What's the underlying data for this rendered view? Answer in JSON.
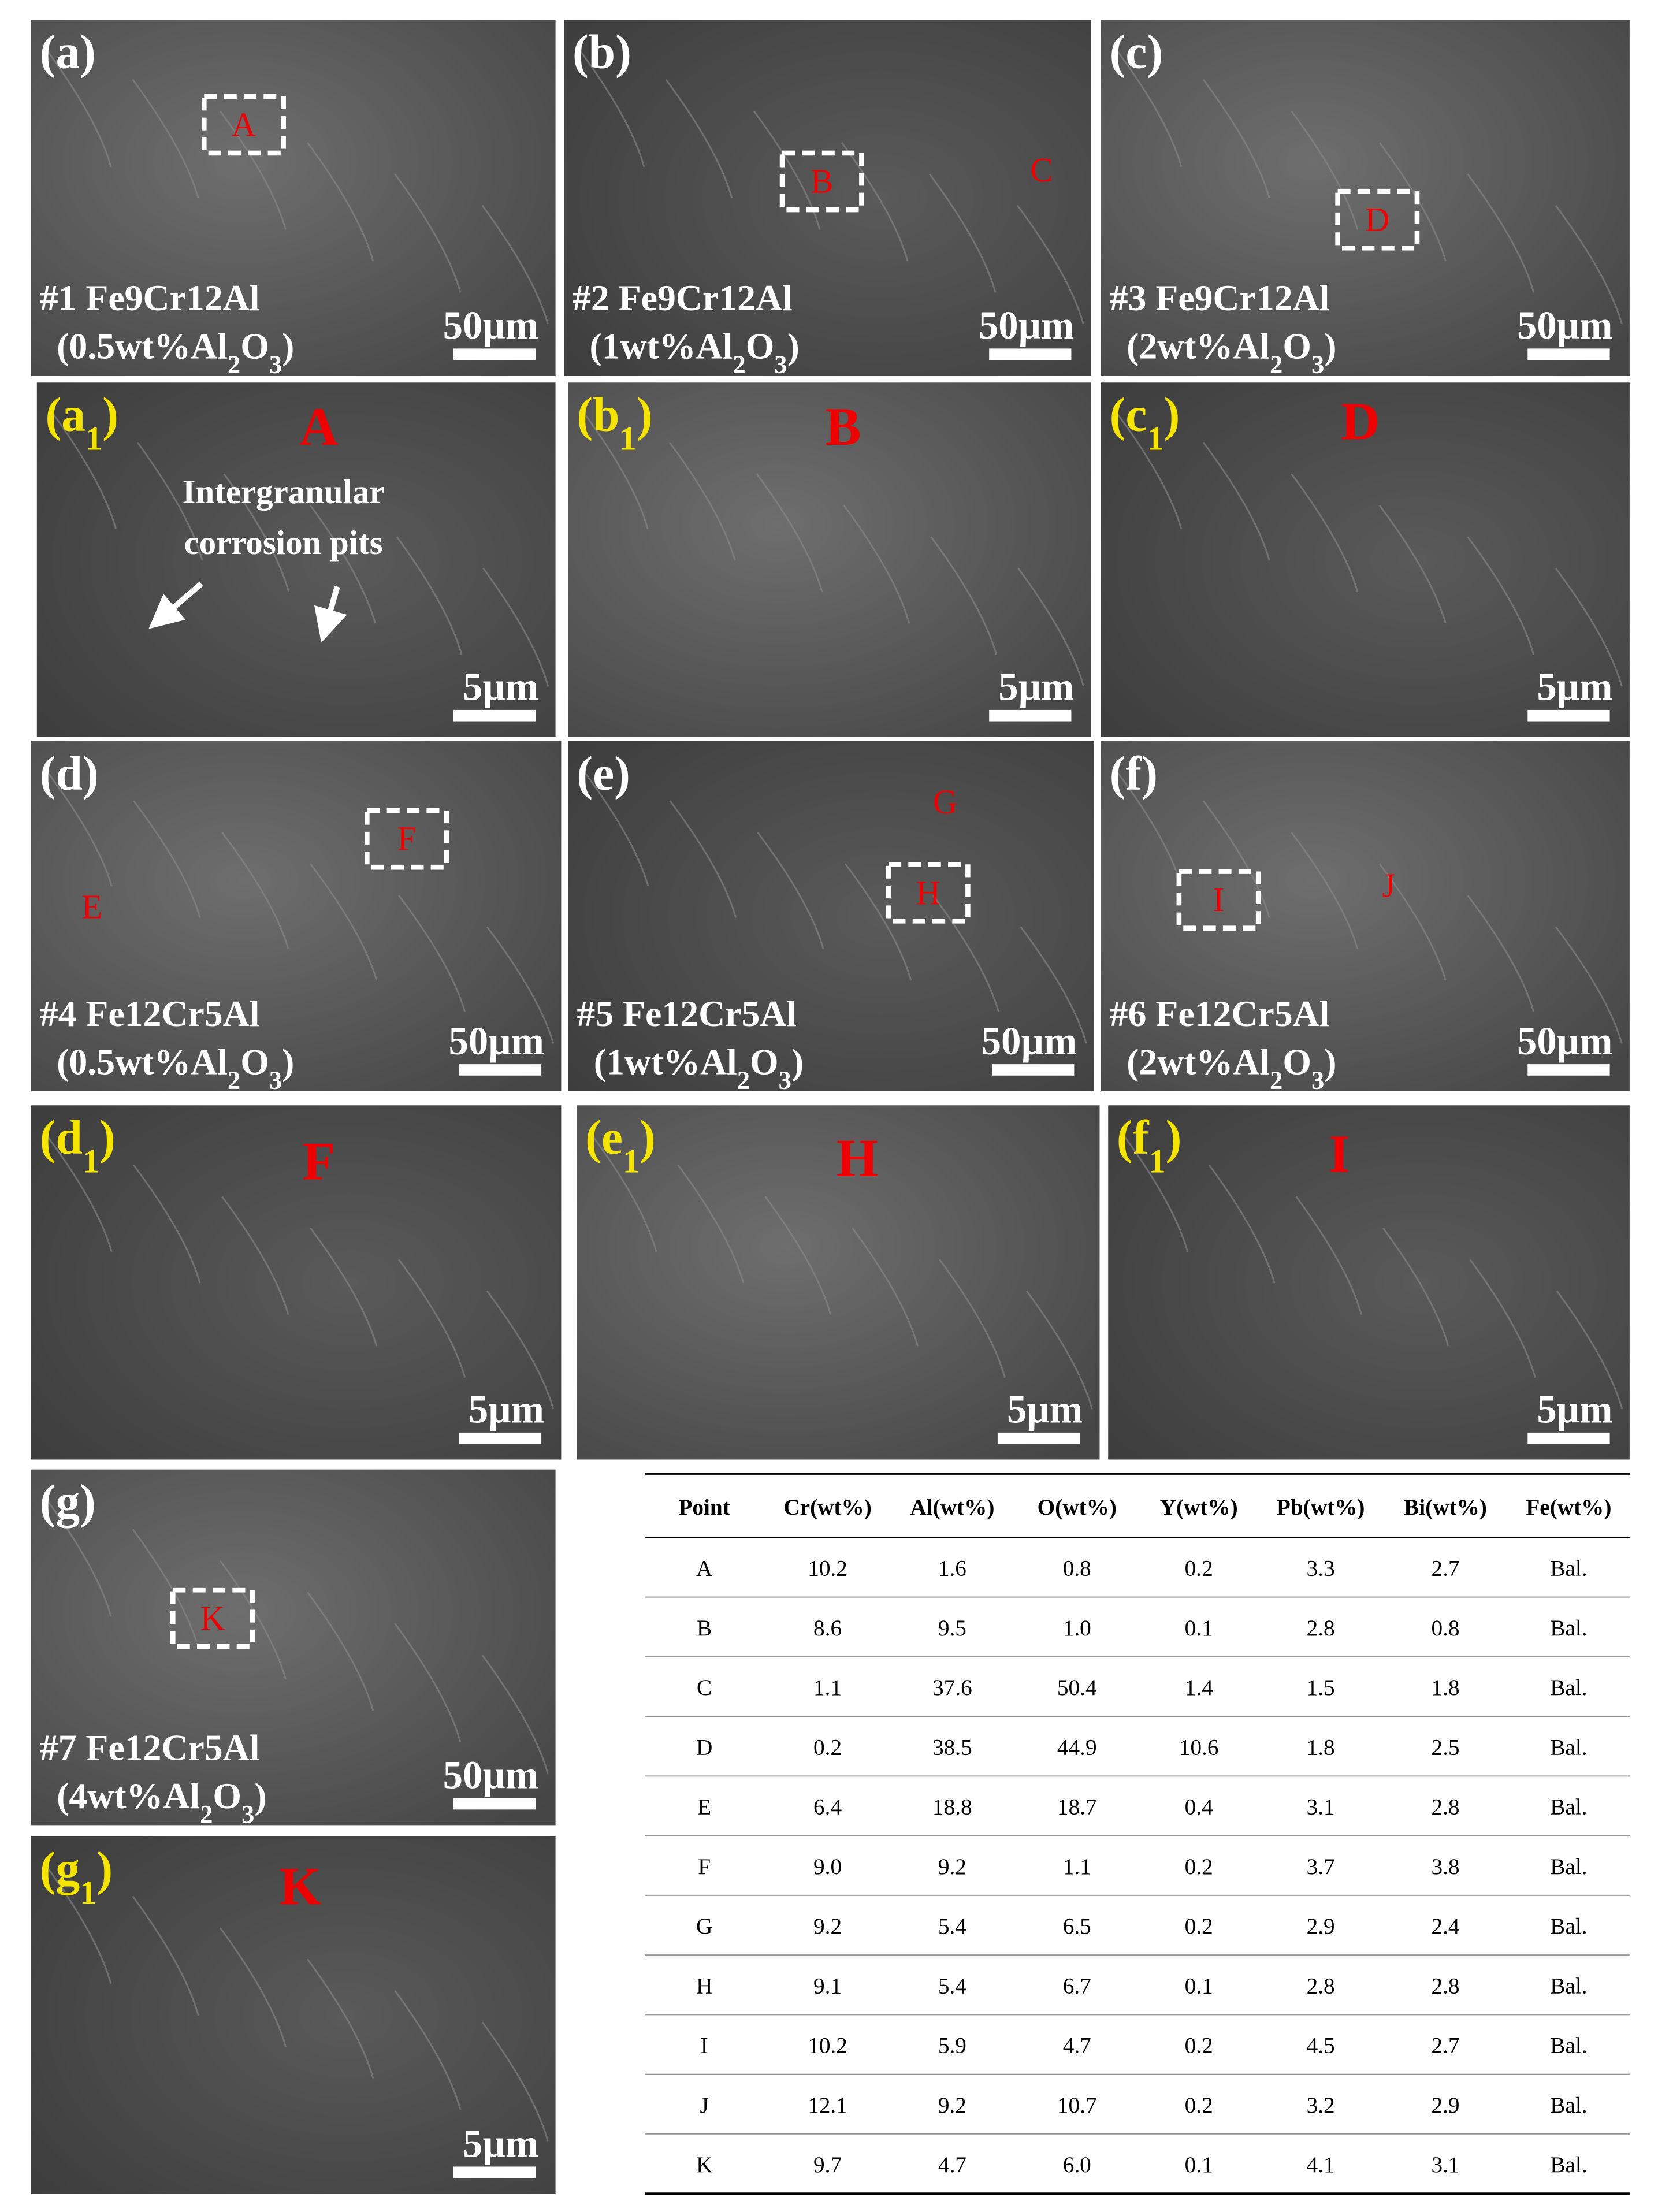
{
  "panels": [
    {
      "label": [
        "(a)"
      ],
      "caption": "#1 Fe9Cr12Al",
      "composition": [
        "(0.5wt%Al",
        "2",
        "O",
        "3",
        ")"
      ],
      "scale": "50µm",
      "points": [
        "A"
      ]
    },
    {
      "label": [
        "(b)"
      ],
      "caption": "#2 Fe9Cr12Al",
      "composition": [
        "(1wt%Al",
        "2",
        "O",
        "3",
        ")"
      ],
      "scale": "50µm",
      "points": [
        "B",
        "C"
      ]
    },
    {
      "label": [
        "(c)"
      ],
      "caption": "#3 Fe9Cr12Al",
      "composition": [
        "(2wt%Al",
        "2",
        "O",
        "3",
        ")"
      ],
      "scale": "50µm",
      "points": [
        "D"
      ]
    },
    {
      "label": [
        "(a",
        "1",
        ")"
      ],
      "scale": "5µm",
      "points": [
        "A"
      ],
      "annotation": [
        "Intergranular",
        "corrosion pits"
      ]
    },
    {
      "label": [
        "(b",
        "1",
        ")"
      ],
      "scale": "5µm",
      "points": [
        "B"
      ]
    },
    {
      "label": [
        "(c",
        "1",
        ")"
      ],
      "scale": "5µm",
      "points": [
        "D"
      ]
    },
    {
      "label": [
        "(d)"
      ],
      "caption": "#4 Fe12Cr5Al",
      "composition": [
        "(0.5wt%Al",
        "2",
        "O",
        "3",
        ")"
      ],
      "scale": "50µm",
      "points": [
        "F",
        "E"
      ]
    },
    {
      "label": [
        "(e)"
      ],
      "caption": "#5 Fe12Cr5Al",
      "composition": [
        "(1wt%Al",
        "2",
        "O",
        "3",
        ")"
      ],
      "scale": "50µm",
      "points": [
        "G",
        "H"
      ]
    },
    {
      "label": [
        "(f)"
      ],
      "caption": "#6 Fe12Cr5Al",
      "composition": [
        "(2wt%Al",
        "2",
        "O",
        "3",
        ")"
      ],
      "scale": "50µm",
      "points": [
        "I",
        "J"
      ]
    },
    {
      "label": [
        "(d",
        "1",
        ")"
      ],
      "scale": "5µm",
      "points": [
        "F"
      ]
    },
    {
      "label": [
        "(e",
        "1",
        ")"
      ],
      "scale": "5µm",
      "points": [
        "H"
      ]
    },
    {
      "label": [
        "(f",
        "1",
        ")"
      ],
      "scale": "5µm",
      "points": [
        "I"
      ]
    },
    {
      "label": [
        "(g)"
      ],
      "caption": "#7 Fe12Cr5Al",
      "composition": [
        "(4wt%Al",
        "2",
        "O",
        "3",
        ")"
      ],
      "scale": "50µm",
      "points": [
        "K"
      ]
    },
    {
      "label": [
        "(g",
        "1",
        ")"
      ],
      "scale": "5µm",
      "points": [
        "K"
      ]
    }
  ],
  "table": {
    "header": [
      "Point",
      "Cr(wt%)",
      "Al(wt%)",
      "O(wt%)",
      "Y(wt%)",
      "Pb(wt%)",
      "Bi(wt%)",
      "Fe(wt%)"
    ],
    "rows": [
      [
        "A",
        "10.2",
        "1.6",
        "0.8",
        "0.2",
        "3.3",
        "2.7",
        "Bal."
      ],
      [
        "B",
        "8.6",
        "9.5",
        "1.0",
        "0.1",
        "2.8",
        "0.8",
        "Bal."
      ],
      [
        "C",
        "1.1",
        "37.6",
        "50.4",
        "1.4",
        "1.5",
        "1.8",
        "Bal."
      ],
      [
        "D",
        "0.2",
        "38.5",
        "44.9",
        "10.6",
        "1.8",
        "2.5",
        "Bal."
      ],
      [
        "E",
        "6.4",
        "18.8",
        "18.7",
        "0.4",
        "3.1",
        "2.8",
        "Bal."
      ],
      [
        "F",
        "9.0",
        "9.2",
        "1.1",
        "0.2",
        "3.7",
        "3.8",
        "Bal."
      ],
      [
        "G",
        "9.2",
        "5.4",
        "6.5",
        "0.2",
        "2.9",
        "2.4",
        "Bal."
      ],
      [
        "H",
        "9.1",
        "5.4",
        "6.7",
        "0.1",
        "2.8",
        "2.8",
        "Bal."
      ],
      [
        "I",
        "10.2",
        "5.9",
        "4.7",
        "0.2",
        "4.5",
        "2.7",
        "Bal."
      ],
      [
        "J",
        "12.1",
        "9.2",
        "10.7",
        "0.2",
        "3.2",
        "2.9",
        "Bal."
      ],
      [
        "K",
        "9.7",
        "4.7",
        "6.0",
        "0.1",
        "4.1",
        "3.1",
        "Bal."
      ]
    ]
  }
}
